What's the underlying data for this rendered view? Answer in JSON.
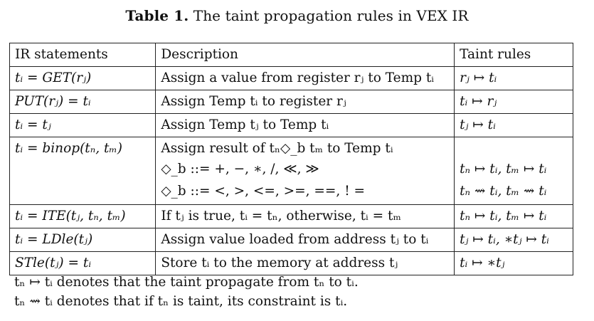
{
  "caption": {
    "label": "Table 1.",
    "text": "The taint propagation rules in VEX IR"
  },
  "table": {
    "headers": [
      "IR statements",
      "Description",
      "Taint rules"
    ],
    "rows": [
      {
        "statement": "tᵢ = GET(rⱼ)",
        "description": [
          "Assign a value from register rⱼ to Temp tᵢ"
        ],
        "rules": [
          "rⱼ ↦ tᵢ"
        ]
      },
      {
        "statement": "PUT(rⱼ) = tᵢ",
        "description": [
          "Assign Temp tᵢ to register rⱼ"
        ],
        "rules": [
          "tᵢ ↦ rⱼ"
        ]
      },
      {
        "statement": "tᵢ = tⱼ",
        "description": [
          "Assign Temp tⱼ to Temp tᵢ"
        ],
        "rules": [
          "tⱼ ↦ tᵢ"
        ]
      },
      {
        "statement": "tᵢ = binop(tₙ, tₘ)",
        "description": [
          "Assign result of tₙ◇_b tₘ to Temp tᵢ",
          "◇_b ::= +, −, ∗, /, ≪, ≫",
          "◇_b ::= <, >, <=, >=, ==, ! ="
        ],
        "rules": [
          "",
          "tₙ ↦ tᵢ, tₘ ↦ tᵢ",
          "tₙ ⇝ tᵢ, tₘ ⇝ tᵢ"
        ]
      },
      {
        "statement": "tᵢ = ITE(tⱼ, tₙ, tₘ)",
        "description": [
          "If tⱼ is true, tᵢ = tₙ, otherwise, tᵢ = tₘ"
        ],
        "rules": [
          "tₙ ↦ tᵢ, tₘ ↦ tᵢ"
        ]
      },
      {
        "statement": "tᵢ = LDle(tⱼ)",
        "description": [
          "Assign value loaded from address tⱼ to tᵢ"
        ],
        "rules": [
          "tⱼ ↦ tᵢ, ∗tⱼ ↦ tᵢ"
        ]
      },
      {
        "statement": "STle(tⱼ) = tᵢ",
        "description": [
          "Store tᵢ to the memory at address tⱼ"
        ],
        "rules": [
          "tᵢ ↦ ∗tⱼ"
        ]
      }
    ]
  },
  "notes": [
    "tₙ ↦ tᵢ denotes that the taint propagate from tₙ to tᵢ.",
    "tₙ ⇝ tᵢ denotes that if tₙ is taint, its constraint is tᵢ."
  ]
}
